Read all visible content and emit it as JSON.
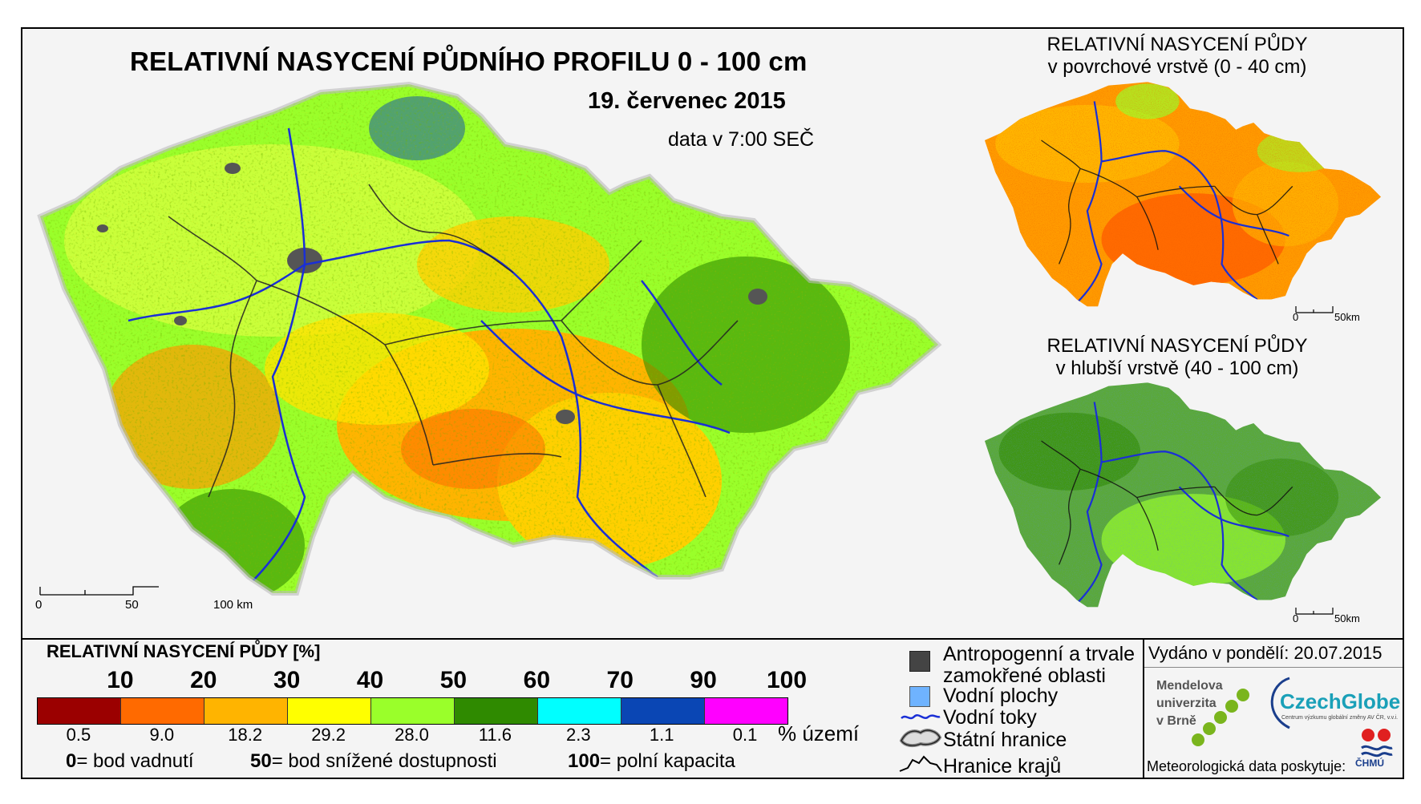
{
  "main": {
    "title": "RELATIVNÍ NASYCENÍ PŮDNÍHO PROFILU 0 - 100 cm",
    "date": "19. červenec 2015",
    "time": "data v 7:00 SEČ",
    "scale": {
      "s0": "0",
      "s1": "50",
      "s2": "100 km"
    }
  },
  "inset_top": {
    "title_line1": "RELATIVNÍ NASYCENÍ PŮDY",
    "title_line2": "v povrchové vrstvě (0 - 40 cm)",
    "scale": {
      "s0": "0",
      "s1": "50km"
    }
  },
  "inset_bottom": {
    "title_line1": "RELATIVNÍ NASYCENÍ PŮDY",
    "title_line2": "v hlubší vrstvě (40 - 100 cm)",
    "scale": {
      "s0": "0",
      "s1": "50km"
    }
  },
  "legend": {
    "title": "RELATIVNÍ NASYCENÍ PŮDY [%]",
    "breaks": [
      "10",
      "20",
      "30",
      "40",
      "50",
      "60",
      "70",
      "90",
      "100"
    ],
    "classes": [
      {
        "color": "#9b0000",
        "pct": "0.5"
      },
      {
        "color": "#ff6a00",
        "pct": "9.0"
      },
      {
        "color": "#ffb400",
        "pct": "18.2"
      },
      {
        "color": "#ffff00",
        "pct": "29.2"
      },
      {
        "color": "#9aff2a",
        "pct": "28.0"
      },
      {
        "color": "#2f8a00",
        "pct": "11.6"
      },
      {
        "color": "#00ffff",
        "pct": "2.3"
      },
      {
        "color": "#0a46b4",
        "pct": "1.1"
      },
      {
        "color": "#ff00ff",
        "pct": "0.1"
      }
    ],
    "pct_unit": "% území",
    "notes": [
      {
        "num": "0",
        "text": "= bod vadnutí"
      },
      {
        "num": "50",
        "text": "= bod snížené dostupnosti"
      },
      {
        "num": "100",
        "text": "= polní kapacita"
      }
    ]
  },
  "symbols": {
    "anthropogenic_line1": "Antropogenní a trvale",
    "anthropogenic_line2": "zamokřené oblasti",
    "water_bodies": "Vodní plochy",
    "rivers": "Vodní toky",
    "state_border": "Státní hranice",
    "region_border": "Hranice krajů"
  },
  "info": {
    "issued": "Vydáno v pondělí: 20.07.2015",
    "mendel_line1": "Mendelova",
    "mendel_line2": "univerzita",
    "mendel_line3": "v Brně",
    "czechglobe": "CzechGlobe",
    "czechglobe_sub": "Centrum výzkumu globální změny AV ČR, v.v.i.",
    "meteo": "Meteorologická data poskytuje:",
    "chmu": "ČHMÚ"
  }
}
